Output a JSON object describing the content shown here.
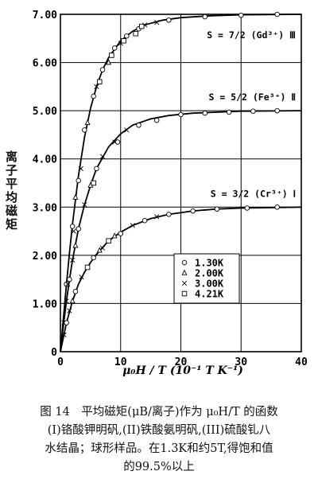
{
  "chart_data": {
    "type": "line",
    "ylabel": "离子平均磁矩",
    "xlabel": "μ₀H / T (10⁻¹ T K⁻¹)",
    "xlim": [
      0,
      40
    ],
    "ylim": [
      0,
      7.0
    ],
    "xticks": [
      0,
      10,
      20,
      30,
      40
    ],
    "yticks": [
      "0",
      "1.00",
      "2.00",
      "3.00",
      "4.00",
      "5.00",
      "6.00",
      "7.00"
    ],
    "curve_labels": [
      {
        "text": "S = 7/2 (Gd³⁺) Ⅲ",
        "saturation": 7.0
      },
      {
        "text": "S = 5/2 (Fe³⁺) Ⅱ",
        "saturation": 5.0
      },
      {
        "text": "S = 3/2 (Cr³⁺) Ⅰ",
        "saturation": 3.0
      }
    ],
    "legend": {
      "placement": "lower-right",
      "entries": [
        {
          "label": "1.30K",
          "marker": "circle"
        },
        {
          "label": "2.00K",
          "marker": "triangle"
        },
        {
          "label": "3.00K",
          "marker": "cross"
        },
        {
          "label": "4.21K",
          "marker": "square"
        }
      ]
    },
    "series": [
      {
        "name": "S = 7/2 (Gd³⁺) Ⅲ",
        "curve": [
          [
            0,
            0
          ],
          [
            0.5,
            0.7
          ],
          [
            1,
            1.4
          ],
          [
            1.5,
            2.05
          ],
          [
            2,
            2.65
          ],
          [
            3,
            3.65
          ],
          [
            4,
            4.45
          ],
          [
            5,
            5.05
          ],
          [
            6,
            5.5
          ],
          [
            7,
            5.85
          ],
          [
            8,
            6.1
          ],
          [
            10,
            6.45
          ],
          [
            12,
            6.65
          ],
          [
            14,
            6.78
          ],
          [
            17,
            6.88
          ],
          [
            20,
            6.93
          ],
          [
            25,
            6.97
          ],
          [
            30,
            6.99
          ],
          [
            40,
            7.0
          ]
        ],
        "points": [
          {
            "m": "circle",
            "x": 1.0,
            "y": 1.4
          },
          {
            "m": "circle",
            "x": 2.0,
            "y": 2.6
          },
          {
            "m": "circle",
            "x": 3.0,
            "y": 3.55
          },
          {
            "m": "circle",
            "x": 4.0,
            "y": 4.6
          },
          {
            "m": "circle",
            "x": 5.5,
            "y": 5.3
          },
          {
            "m": "circle",
            "x": 7.0,
            "y": 5.85
          },
          {
            "m": "circle",
            "x": 9.0,
            "y": 6.3
          },
          {
            "m": "circle",
            "x": 11,
            "y": 6.55
          },
          {
            "m": "circle",
            "x": 13,
            "y": 6.7
          },
          {
            "m": "circle",
            "x": 18,
            "y": 6.88
          },
          {
            "m": "circle",
            "x": 24,
            "y": 6.95
          },
          {
            "m": "circle",
            "x": 30,
            "y": 6.98
          },
          {
            "m": "circle",
            "x": 36,
            "y": 7.0
          },
          {
            "m": "triangle",
            "x": 2.5,
            "y": 3.2
          },
          {
            "m": "triangle",
            "x": 4.5,
            "y": 4.75
          },
          {
            "m": "triangle",
            "x": 8,
            "y": 6.0
          },
          {
            "m": "cross",
            "x": 0.6,
            "y": 0.6
          },
          {
            "m": "cross",
            "x": 1.2,
            "y": 1.4
          },
          {
            "m": "cross",
            "x": 2.2,
            "y": 2.5
          },
          {
            "m": "cross",
            "x": 3.4,
            "y": 3.8
          },
          {
            "m": "cross",
            "x": 6,
            "y": 5.5
          },
          {
            "m": "cross",
            "x": 10,
            "y": 6.4
          },
          {
            "m": "cross",
            "x": 14,
            "y": 6.78
          },
          {
            "m": "cross",
            "x": 16,
            "y": 6.83
          },
          {
            "m": "square",
            "x": 6.5,
            "y": 5.6
          },
          {
            "m": "square",
            "x": 8.5,
            "y": 6.15
          },
          {
            "m": "square",
            "x": 10.5,
            "y": 6.45
          },
          {
            "m": "square",
            "x": 12.5,
            "y": 6.6
          },
          {
            "m": "square",
            "x": 13.5,
            "y": 6.75
          }
        ]
      },
      {
        "name": "S = 5/2 (Fe³⁺) Ⅱ",
        "curve": [
          [
            0,
            0
          ],
          [
            0.5,
            0.55
          ],
          [
            1,
            1.05
          ],
          [
            1.5,
            1.5
          ],
          [
            2,
            1.9
          ],
          [
            3,
            2.55
          ],
          [
            4,
            3.05
          ],
          [
            5,
            3.45
          ],
          [
            6,
            3.8
          ],
          [
            8,
            4.25
          ],
          [
            10,
            4.52
          ],
          [
            12,
            4.7
          ],
          [
            15,
            4.83
          ],
          [
            18,
            4.9
          ],
          [
            22,
            4.95
          ],
          [
            30,
            4.99
          ],
          [
            40,
            5.0
          ]
        ],
        "points": [
          {
            "m": "circle",
            "x": 1.5,
            "y": 1.5
          },
          {
            "m": "circle",
            "x": 3,
            "y": 2.55
          },
          {
            "m": "circle",
            "x": 6,
            "y": 3.8
          },
          {
            "m": "circle",
            "x": 9.5,
            "y": 4.35
          },
          {
            "m": "circle",
            "x": 13,
            "y": 4.7
          },
          {
            "m": "circle",
            "x": 16,
            "y": 4.8
          },
          {
            "m": "circle",
            "x": 20,
            "y": 4.92
          },
          {
            "m": "circle",
            "x": 24,
            "y": 4.95
          },
          {
            "m": "circle",
            "x": 28,
            "y": 4.97
          },
          {
            "m": "circle",
            "x": 32,
            "y": 4.99
          },
          {
            "m": "circle",
            "x": 36,
            "y": 5.0
          },
          {
            "m": "triangle",
            "x": 2.5,
            "y": 2.2
          },
          {
            "m": "triangle",
            "x": 5,
            "y": 3.45
          },
          {
            "m": "cross",
            "x": 1,
            "y": 1.05
          },
          {
            "m": "cross",
            "x": 2,
            "y": 1.9
          },
          {
            "m": "cross",
            "x": 4,
            "y": 3.05
          },
          {
            "m": "cross",
            "x": 7,
            "y": 4.05
          },
          {
            "m": "cross",
            "x": 9,
            "y": 4.35
          },
          {
            "m": "cross",
            "x": 11,
            "y": 4.6
          },
          {
            "m": "square",
            "x": 5.5,
            "y": 3.5
          }
        ]
      },
      {
        "name": "S = 3/2 (Cr³⁺) Ⅰ",
        "curve": [
          [
            0,
            0
          ],
          [
            0.5,
            0.3
          ],
          [
            1,
            0.6
          ],
          [
            2,
            1.05
          ],
          [
            3,
            1.4
          ],
          [
            4,
            1.65
          ],
          [
            5,
            1.85
          ],
          [
            6,
            2.02
          ],
          [
            8,
            2.3
          ],
          [
            10,
            2.48
          ],
          [
            12,
            2.62
          ],
          [
            15,
            2.76
          ],
          [
            18,
            2.85
          ],
          [
            22,
            2.92
          ],
          [
            26,
            2.96
          ],
          [
            30,
            2.98
          ],
          [
            40,
            3.0
          ]
        ],
        "points": [
          {
            "m": "circle",
            "x": 1,
            "y": 0.6
          },
          {
            "m": "circle",
            "x": 2.5,
            "y": 1.25
          },
          {
            "m": "circle",
            "x": 5.5,
            "y": 1.95
          },
          {
            "m": "circle",
            "x": 10,
            "y": 2.45
          },
          {
            "m": "circle",
            "x": 14,
            "y": 2.72
          },
          {
            "m": "circle",
            "x": 18,
            "y": 2.85
          },
          {
            "m": "circle",
            "x": 22,
            "y": 2.92
          },
          {
            "m": "circle",
            "x": 26,
            "y": 2.96
          },
          {
            "m": "circle",
            "x": 31,
            "y": 2.98
          },
          {
            "m": "circle",
            "x": 36,
            "y": 3.0
          },
          {
            "m": "triangle",
            "x": 2,
            "y": 1.05
          },
          {
            "m": "triangle",
            "x": 6.5,
            "y": 2.1
          },
          {
            "m": "triangle",
            "x": 9,
            "y": 2.4
          },
          {
            "m": "cross",
            "x": 0.6,
            "y": 0.35
          },
          {
            "m": "cross",
            "x": 1.5,
            "y": 0.85
          },
          {
            "m": "cross",
            "x": 3.5,
            "y": 1.55
          },
          {
            "m": "cross",
            "x": 7,
            "y": 2.15
          },
          {
            "m": "cross",
            "x": 12,
            "y": 2.62
          },
          {
            "m": "cross",
            "x": 16,
            "y": 2.8
          },
          {
            "m": "square",
            "x": 4.5,
            "y": 1.75
          },
          {
            "m": "square",
            "x": 8,
            "y": 2.3
          }
        ]
      }
    ]
  },
  "caption": {
    "line1": "图 14　平均磁矩(μB/离子)作为 μ₀H/T 的函数",
    "line2": "(I)铬酸钾明矾,(II)铁酸氨明矾,(III)硫酸钆八",
    "line3": "水结晶；球形样品。在1.3K和约5T,得饱和值",
    "line4": "的99.5%以上"
  }
}
